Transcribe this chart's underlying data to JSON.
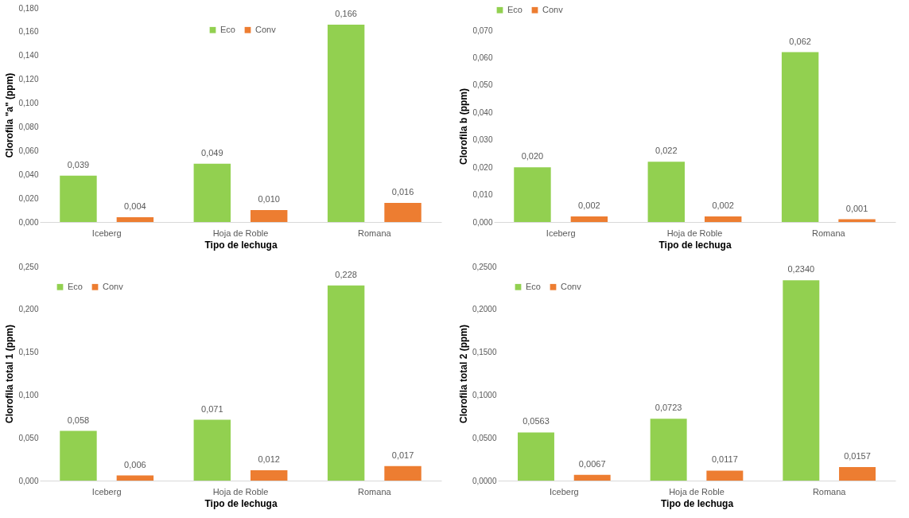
{
  "chart_data": [
    {
      "type": "bar",
      "xlabel": "Tipo de lechuga",
      "ylabel": "Clorofila \"a\" (ppm)",
      "categories": [
        "Iceberg",
        "Hoja de Roble",
        "Romana"
      ],
      "series": [
        {
          "name": "Eco",
          "color": "#92d050",
          "values": [
            0.039,
            0.049,
            0.166
          ],
          "value_labels": [
            "0,039",
            "0,049",
            "0,166"
          ]
        },
        {
          "name": "Conv",
          "color": "#ed7d31",
          "values": [
            0.004,
            0.01,
            0.016
          ],
          "value_labels": [
            "0,004",
            "0,010",
            "0,016"
          ]
        }
      ],
      "ylim": [
        0,
        0.18
      ],
      "yticks": [
        {
          "value": 0,
          "label": "0,000"
        },
        {
          "value": 0.02,
          "label": "0,020"
        },
        {
          "value": 0.04,
          "label": "0,040"
        },
        {
          "value": 0.06,
          "label": "0,060"
        },
        {
          "value": 0.08,
          "label": "0,080"
        },
        {
          "value": 0.1,
          "label": "0,100"
        },
        {
          "value": 0.12,
          "label": "0,120"
        },
        {
          "value": 0.14,
          "label": "0,140"
        },
        {
          "value": 0.16,
          "label": "0,160"
        },
        {
          "value": 0.18,
          "label": "0,180"
        }
      ],
      "legend": "top right"
    },
    {
      "type": "bar",
      "xlabel": "Tipo de lechuga",
      "ylabel": "Clorofila b (ppm)",
      "categories": [
        "Iceberg",
        "Hoja de Roble",
        "Romana"
      ],
      "series": [
        {
          "name": "Eco",
          "color": "#92d050",
          "values": [
            0.02,
            0.022,
            0.062
          ],
          "value_labels": [
            "0,020",
            "0,022",
            "0,062"
          ]
        },
        {
          "name": "Conv",
          "color": "#ed7d31",
          "values": [
            0.002,
            0.002,
            0.001
          ],
          "value_labels": [
            "0,002",
            "0,002",
            "0,001"
          ]
        }
      ],
      "ylim": [
        0,
        0.07
      ],
      "yticks": [
        {
          "value": 0,
          "label": "0,000"
        },
        {
          "value": 0.01,
          "label": "0,010"
        },
        {
          "value": 0.02,
          "label": "0,020"
        },
        {
          "value": 0.03,
          "label": "0,030"
        },
        {
          "value": 0.04,
          "label": "0,040"
        },
        {
          "value": 0.05,
          "label": "0,050"
        },
        {
          "value": 0.06,
          "label": "0,060"
        },
        {
          "value": 0.07,
          "label": "0,070"
        }
      ],
      "legend": "top"
    },
    {
      "type": "bar",
      "xlabel": "Tipo de lechuga",
      "ylabel": "Clorofila total 1 (ppm)",
      "categories": [
        "Iceberg",
        "Hoja de Roble",
        "Romana"
      ],
      "series": [
        {
          "name": "Eco",
          "color": "#92d050",
          "values": [
            0.058,
            0.071,
            0.228
          ],
          "value_labels": [
            "0,058",
            "0,071",
            "0,228"
          ]
        },
        {
          "name": "Conv",
          "color": "#ed7d31",
          "values": [
            0.006,
            0.012,
            0.017
          ],
          "value_labels": [
            "0,006",
            "0,012",
            "0,017"
          ]
        }
      ],
      "ylim": [
        0,
        0.25
      ],
      "yticks": [
        {
          "value": 0,
          "label": "0,000"
        },
        {
          "value": 0.05,
          "label": "0,050"
        },
        {
          "value": 0.1,
          "label": "0,100"
        },
        {
          "value": 0.15,
          "label": "0,150"
        },
        {
          "value": 0.2,
          "label": "0,200"
        },
        {
          "value": 0.25,
          "label": "0,250"
        }
      ],
      "legend": "top left"
    },
    {
      "type": "bar",
      "xlabel": "Tipo de lechuga",
      "ylabel": "Clorofila total 2 (ppm)",
      "categories": [
        "Iceberg",
        "Hoja de Roble",
        "Romana"
      ],
      "series": [
        {
          "name": "Eco",
          "color": "#92d050",
          "values": [
            0.0563,
            0.0723,
            0.234
          ],
          "value_labels": [
            "0,0563",
            "0,0723",
            "0,2340"
          ]
        },
        {
          "name": "Conv",
          "color": "#ed7d31",
          "values": [
            0.0067,
            0.0117,
            0.0157
          ],
          "value_labels": [
            "0,0067",
            "0,0117",
            "0,0157"
          ]
        }
      ],
      "ylim": [
        0,
        0.25
      ],
      "yticks": [
        {
          "value": 0,
          "label": "0,0000"
        },
        {
          "value": 0.05,
          "label": "0,0500"
        },
        {
          "value": 0.1,
          "label": "0,1000"
        },
        {
          "value": 0.15,
          "label": "0,1500"
        },
        {
          "value": 0.2,
          "label": "0,2000"
        },
        {
          "value": 0.25,
          "label": "0,2500"
        }
      ],
      "legend": "top left"
    }
  ]
}
